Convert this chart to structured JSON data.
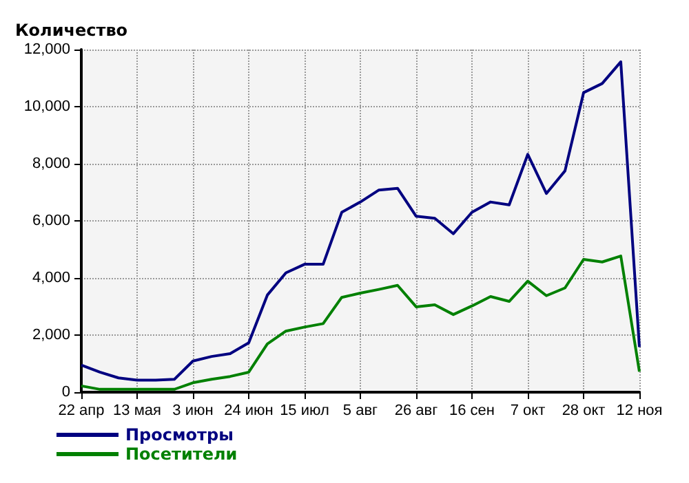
{
  "chart_data": {
    "type": "line",
    "ylabel": "Количество",
    "categories": [
      "22 апр",
      null,
      null,
      "13 мая",
      null,
      null,
      "3 июн",
      null,
      null,
      "24 июн",
      null,
      null,
      "15 июл",
      null,
      null,
      "5 авг",
      null,
      null,
      "26 авг",
      null,
      null,
      "16 сен",
      null,
      null,
      "7 окт",
      null,
      null,
      "28 окт",
      null,
      null,
      "12 ноя"
    ],
    "series": [
      {
        "name": "Просмотры",
        "color": "#000080",
        "values": [
          950,
          700,
          500,
          420,
          420,
          450,
          1090,
          1250,
          1350,
          1730,
          3400,
          4180,
          4480,
          4480,
          6300,
          6660,
          7080,
          7140,
          6160,
          6090,
          5550,
          6300,
          6660,
          6560,
          8330,
          6960,
          7750,
          10490,
          10810,
          11570,
          1580
        ]
      },
      {
        "name": "Посетители",
        "color": "#008000",
        "values": [
          220,
          100,
          100,
          100,
          100,
          100,
          330,
          450,
          550,
          700,
          1690,
          2140,
          2280,
          2400,
          3320,
          3470,
          3600,
          3740,
          2990,
          3060,
          2720,
          3020,
          3350,
          3180,
          3890,
          3380,
          3650,
          4650,
          4560,
          4770,
          720
        ]
      }
    ],
    "ylim": [
      0,
      12000
    ],
    "yticks": [
      {
        "value": 0,
        "label": "0"
      },
      {
        "value": 2000,
        "label": "2,000"
      },
      {
        "value": 4000,
        "label": "4,000"
      },
      {
        "value": 6000,
        "label": "6,000"
      },
      {
        "value": 8000,
        "label": "8,000"
      },
      {
        "value": 10000,
        "label": "10,000"
      },
      {
        "value": 12000,
        "label": "12,000"
      }
    ],
    "grid": true,
    "legend": "bottom left",
    "line_style": "solid",
    "marker": "none"
  }
}
